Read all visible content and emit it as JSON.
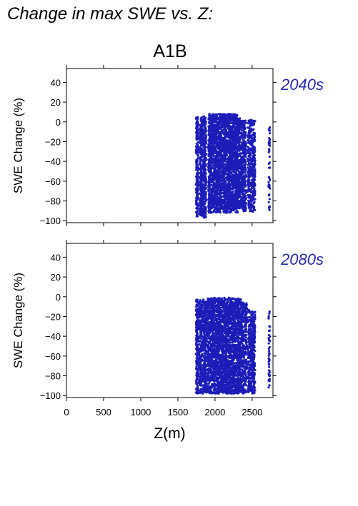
{
  "figure": {
    "title": "Change in max SWE vs. Z:",
    "scenario": "A1B"
  },
  "colors": {
    "points": "#1c1cb8",
    "period_label": "#2a2ab0",
    "axis": "#000000"
  },
  "chart_data": [
    {
      "type": "scatter",
      "panel": "2040s",
      "ylabel": "SWE Change (%)",
      "xlabel": "",
      "xlim": [
        0,
        2780
      ],
      "ylim": [
        -102,
        54
      ],
      "yticks": [
        40,
        20,
        0,
        -20,
        -40,
        -60,
        -80,
        -100
      ],
      "ytick_labels": [
        "40",
        "20",
        "0",
        "−20",
        "−40",
        "−60",
        "−80",
        "−100"
      ],
      "xticks": [
        0,
        500,
        1000,
        1500,
        2000,
        2500
      ],
      "xtick_labels": [],
      "grid": false,
      "clusters": [
        {
          "x": [
            1745,
            1775
          ],
          "y": [
            -96,
            5
          ],
          "n": 200
        },
        {
          "x": [
            1795,
            1835
          ],
          "y": [
            -95,
            5
          ],
          "n": 260
        },
        {
          "x": [
            1840,
            1880
          ],
          "y": [
            -97,
            6
          ],
          "n": 260
        },
        {
          "x": [
            1910,
            2310
          ],
          "y": [
            -92,
            8
          ],
          "n": 2200
        },
        {
          "x": [
            2310,
            2340
          ],
          "y": [
            -88,
            4
          ],
          "n": 160
        },
        {
          "x": [
            2350,
            2420
          ],
          "y": [
            -91,
            2
          ],
          "n": 320
        },
        {
          "x": [
            2440,
            2470
          ],
          "y": [
            -88,
            3
          ],
          "n": 120
        },
        {
          "x": [
            2470,
            2540
          ],
          "y": [
            -92,
            2
          ],
          "n": 300
        },
        {
          "x": [
            2720,
            2740
          ],
          "y": [
            -91,
            -5
          ],
          "n": 45
        }
      ]
    },
    {
      "type": "scatter",
      "panel": "2080s",
      "ylabel": "SWE Change (%)",
      "xlabel": "Z(m)",
      "xlim": [
        0,
        2780
      ],
      "ylim": [
        -102,
        54
      ],
      "yticks": [
        40,
        20,
        0,
        -20,
        -40,
        -60,
        -80,
        -100
      ],
      "ytick_labels": [
        "40",
        "20",
        "0",
        "−20",
        "−40",
        "−60",
        "−80",
        "−100"
      ],
      "xticks": [
        0,
        500,
        1000,
        1500,
        2000,
        2500
      ],
      "xtick_labels": [
        "0",
        "500",
        "1000",
        "1500",
        "2000",
        "2500"
      ],
      "grid": false,
      "clusters": [
        {
          "x": [
            1745,
            1775
          ],
          "y": [
            -98,
            -3
          ],
          "n": 200
        },
        {
          "x": [
            1785,
            1845
          ],
          "y": [
            -98,
            -3
          ],
          "n": 280
        },
        {
          "x": [
            1850,
            1890
          ],
          "y": [
            -98,
            -5
          ],
          "n": 220
        },
        {
          "x": [
            1900,
            2320
          ],
          "y": [
            -98,
            -1
          ],
          "n": 2200
        },
        {
          "x": [
            2320,
            2350
          ],
          "y": [
            -98,
            -2
          ],
          "n": 160
        },
        {
          "x": [
            2350,
            2430
          ],
          "y": [
            -98,
            -6
          ],
          "n": 320
        },
        {
          "x": [
            2440,
            2480
          ],
          "y": [
            -98,
            -10
          ],
          "n": 140
        },
        {
          "x": [
            2480,
            2540
          ],
          "y": [
            -98,
            -15
          ],
          "n": 260
        },
        {
          "x": [
            2720,
            2740
          ],
          "y": [
            -95,
            -15
          ],
          "n": 45
        }
      ]
    }
  ]
}
